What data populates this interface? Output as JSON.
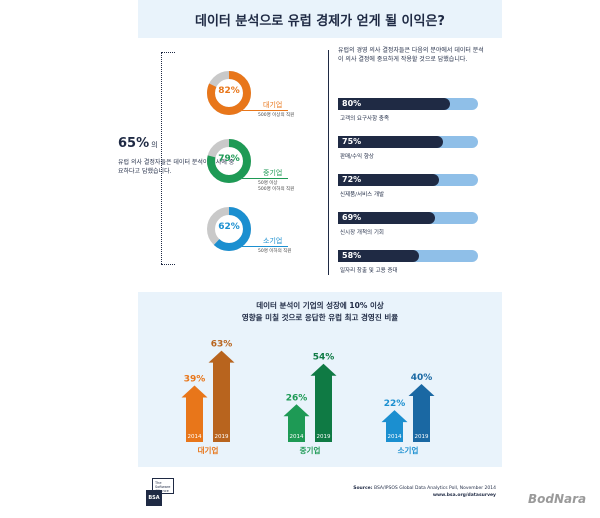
{
  "title": "데이터 분석으로 유럽 경제가 얻게 될 이익은?",
  "left": {
    "big_pct": "65%",
    "big_suffix": "의",
    "desc": "유럽 의사 결정자들은 데이터 분석이 회사에 중요하다고 답했습니다.",
    "donuts": [
      {
        "pct_text": "82%",
        "value": 82,
        "name": "대기업",
        "note": "500명 이상의 직원",
        "color": "#e8761a"
      },
      {
        "pct_text": "79%",
        "value": 79,
        "name": "중기업",
        "note": "50명 이상\n500명 이하의 직원",
        "color": "#1e9a55"
      },
      {
        "pct_text": "62%",
        "value": 62,
        "name": "소기업",
        "note": "50명 이하의 직원",
        "color": "#1b8fd0"
      }
    ]
  },
  "right": {
    "intro": "유럽의 경영 의사 결정자들은 다음의 분야에서 데이터 분석이 의사 결정에 중요하게 작용할 것으로 답했습니다.",
    "bars": [
      {
        "value_text": "80%",
        "value": 80,
        "label": "고객의 요구사항 충족"
      },
      {
        "value_text": "75%",
        "value": 75,
        "label": "판매/수익 향상"
      },
      {
        "value_text": "72%",
        "value": 72,
        "label": "신제품/서비스 개발"
      },
      {
        "value_text": "69%",
        "value": 69,
        "label": "신시장 개척의 기회"
      },
      {
        "value_text": "58%",
        "value": 58,
        "label": "일자리 창출 및 고용 증대"
      }
    ]
  },
  "bottom": {
    "title_line1": "데이터 분석이 기업의 성장에 10% 이상",
    "title_line2": "영향을 미칠 것으로 응답한 유럽 최고 경영진 비율"
  },
  "chart_data": {
    "type": "bar",
    "categories": [
      "대기업",
      "중기업",
      "소기업"
    ],
    "x": [
      "2014",
      "2019"
    ],
    "series": [
      {
        "name": "대기업",
        "values": [
          39,
          63
        ],
        "labels": [
          "39%",
          "63%"
        ],
        "color": "#e8761a",
        "color_dark": "#b8641e"
      },
      {
        "name": "중기업",
        "values": [
          26,
          54
        ],
        "labels": [
          "26%",
          "54%"
        ],
        "color": "#1e9a55",
        "color_dark": "#0f7a44"
      },
      {
        "name": "소기업",
        "values": [
          22,
          40
        ],
        "labels": [
          "22%",
          "40%"
        ],
        "color": "#1b8fd0",
        "color_dark": "#1a68a3"
      }
    ],
    "ylim": [
      0,
      70
    ]
  },
  "source": {
    "label": "Source:",
    "text": "BSA/IPSOS Global Data Analytics Poll, November 2014",
    "url": "www.bsa.org/datasurvey"
  },
  "logo": {
    "text": "BSA",
    "small_text": "The Software Alliance"
  },
  "watermark": "BodNara",
  "colors": {
    "navy": "#1f2a44",
    "track": "#8fbfe8",
    "band": "#e9f3fb",
    "grey": "#c9c9c9"
  }
}
